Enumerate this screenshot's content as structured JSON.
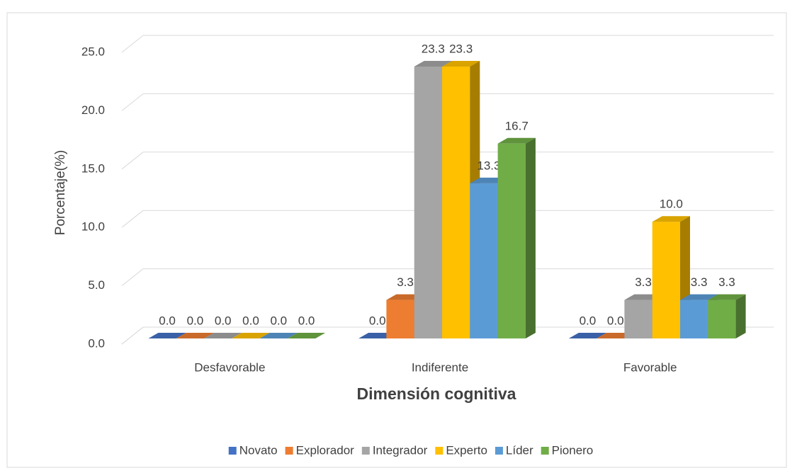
{
  "chart_data": {
    "type": "bar3d",
    "x_label": "Dimensión cognitiva",
    "y_label": "Porcentaje(%)",
    "categories": [
      "Desfavorable",
      "Indiferente",
      "Favorable"
    ],
    "series": [
      {
        "name": "Novato",
        "color": "#4472c4",
        "values": [
          0,
          0,
          0
        ],
        "value_labels": [
          "0.0",
          "0.0",
          "0.0"
        ]
      },
      {
        "name": "Explorador",
        "color": "#ed7d31",
        "values": [
          0,
          3.3,
          0
        ],
        "value_labels": [
          "0.0",
          "3.3",
          "0.0"
        ]
      },
      {
        "name": "Integrador",
        "color": "#a5a5a5",
        "values": [
          0,
          23.3,
          3.3
        ],
        "value_labels": [
          "0.0",
          "23.3",
          "3.3"
        ]
      },
      {
        "name": "Experto",
        "color": "#ffc000",
        "values": [
          0,
          23.3,
          10
        ],
        "value_labels": [
          "0.0",
          "23.3",
          "10.0"
        ]
      },
      {
        "name": "Líder",
        "color": "#5b9bd5",
        "values": [
          0,
          13.3,
          3.3
        ],
        "value_labels": [
          "0.0",
          "13.3",
          "3.3"
        ]
      },
      {
        "name": "Pionero",
        "color": "#70ad47",
        "values": [
          0,
          16.7,
          3.3
        ],
        "value_labels": [
          "0.0",
          "16.7",
          "3.3"
        ]
      }
    ],
    "ylim": [
      0,
      25
    ],
    "yticks": [
      {
        "value": 0,
        "label": "0.0"
      },
      {
        "value": 5,
        "label": "5.0"
      },
      {
        "value": 10,
        "label": "10.0"
      },
      {
        "value": 15,
        "label": "15.0"
      },
      {
        "value": 20,
        "label": "20.0"
      },
      {
        "value": 25,
        "label": "25.0"
      }
    ],
    "grid": true,
    "legend": "bottom"
  }
}
